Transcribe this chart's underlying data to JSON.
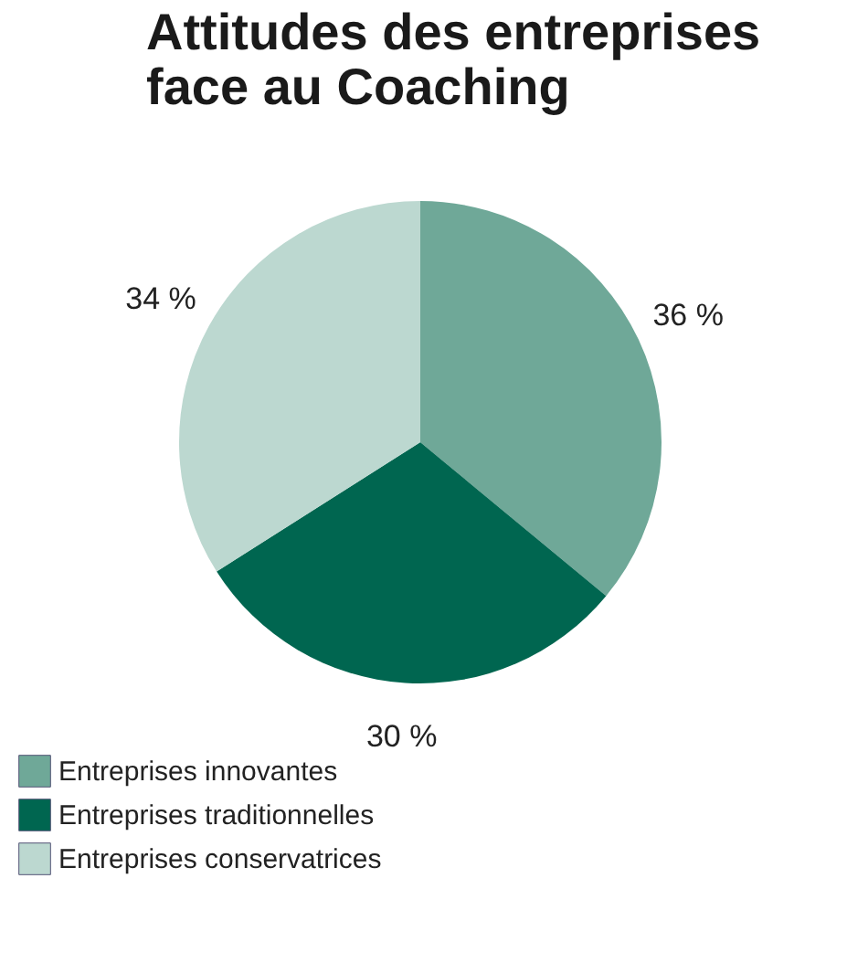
{
  "chart_data": {
    "type": "pie",
    "title": "Attitudes des entreprises face au Coaching",
    "categories": [
      "Entreprises innovantes",
      "Entreprises traditionnelles",
      "Entreprises conservatrices"
    ],
    "values": [
      36,
      30,
      34
    ],
    "colors": [
      "#6fa898",
      "#006650",
      "#bcd8d0"
    ],
    "value_labels": [
      "36 %",
      "30 %",
      "34 %"
    ],
    "legend": "bottom left"
  }
}
